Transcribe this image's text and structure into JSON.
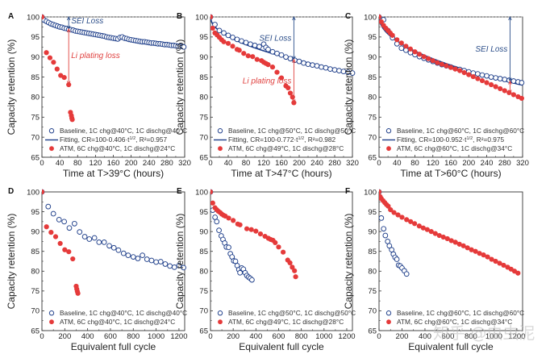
{
  "figure": {
    "watermark": "知乎 @虫虫泥",
    "colors": {
      "baseline": "#1f3f8a",
      "atm": "#e53a3a",
      "fitting": "#1f3f8a",
      "sei_annotation": "#2d4f8a",
      "li_annotation": "#e0413f",
      "reference_line": "#888888"
    }
  },
  "chart_data": [
    {
      "id": "A",
      "type": "scatter",
      "panel_label": "A",
      "xlabel": "Time at T>39°C (hours)",
      "ylabel": "Capacity retention (%)",
      "xlim": [
        0,
        320
      ],
      "ylim": [
        65,
        100
      ],
      "xticks": [
        0,
        40,
        80,
        120,
        160,
        200,
        240,
        280,
        320
      ],
      "yticks": [
        65,
        70,
        75,
        80,
        85,
        90,
        95,
        100
      ],
      "reference_line_y": 100,
      "legend": [
        "Baseline, 1C chg@40°C, 1C dischg@40°C",
        "Fitting, CR=100-0.406·t^1/2, R²=0.957",
        "ATM, 6C chg@40°C, 1C dischg@24°C"
      ],
      "legend_position": "bottom-left",
      "fit": {
        "a": 0.406,
        "r2": 0.957
      },
      "annotations": [
        {
          "text": "SEI Loss",
          "x": 60,
          "y_from": 100,
          "y_to": 97.0,
          "color": "sei"
        },
        {
          "text": "Li plating loss",
          "x": 60,
          "y_from": 97.0,
          "y_to": 83.2,
          "color": "li"
        }
      ],
      "series": [
        {
          "name": "Baseline",
          "marker": "open-circle",
          "x": [
            0,
            5,
            10,
            15,
            20,
            25,
            30,
            35,
            40,
            45,
            50,
            55,
            60,
            65,
            70,
            75,
            80,
            85,
            90,
            95,
            100,
            105,
            110,
            115,
            120,
            125,
            130,
            135,
            140,
            145,
            150,
            155,
            160,
            165,
            170,
            175,
            180,
            185,
            190,
            195,
            200,
            205,
            210,
            215,
            220,
            225,
            230,
            235,
            240,
            245,
            250,
            255,
            260,
            265,
            270,
            275,
            280,
            285,
            290,
            295,
            300,
            305,
            310,
            315,
            318
          ],
          "y": [
            100,
            99.2,
            98.9,
            98.6,
            98.3,
            98.1,
            97.9,
            97.7,
            97.5,
            97.4,
            97.2,
            97.1,
            96.9,
            96.8,
            96.7,
            96.5,
            96.4,
            96.3,
            96.2,
            96.1,
            96.0,
            95.9,
            95.8,
            95.7,
            95.6,
            95.5,
            95.4,
            95.3,
            95.2,
            95.0,
            94.9,
            94.8,
            94.7,
            94.6,
            94.5,
            94.9,
            95.0,
            94.7,
            94.6,
            94.4,
            94.3,
            94.2,
            94.1,
            94.0,
            93.9,
            93.8,
            93.8,
            93.7,
            93.6,
            93.5,
            93.5,
            93.4,
            93.3,
            93.3,
            93.2,
            93.1,
            93.1,
            93.0,
            92.9,
            92.9,
            92.8,
            92.7,
            92.7,
            92.6,
            92.5
          ]
        },
        {
          "name": "ATM",
          "marker": "filled-circle",
          "x": [
            0,
            10,
            18,
            26,
            34,
            42,
            50,
            60,
            64,
            66,
            67,
            68
          ],
          "y": [
            100,
            91.1,
            89.8,
            88.7,
            87.0,
            85.4,
            84.9,
            83.1,
            76.2,
            75.4,
            74.8,
            74.4
          ]
        }
      ]
    },
    {
      "id": "B",
      "type": "scatter",
      "panel_label": "B",
      "xlabel": "Time at T>47°C (hours)",
      "ylabel": "Capacity retention (%)",
      "xlim": [
        0,
        320
      ],
      "ylim": [
        65,
        100
      ],
      "xticks": [
        0,
        40,
        80,
        120,
        160,
        200,
        240,
        280,
        320
      ],
      "yticks": [
        65,
        70,
        75,
        80,
        85,
        90,
        95,
        100
      ],
      "reference_line_y": 100,
      "legend": [
        "Baseline, 1C chg@50°C, 1C dischg@50°C",
        "Fitting, CR=100-0.772·t^1/2, R²=0.982",
        "ATM, 6C chg@49°C, 1C dischg@28°C"
      ],
      "legend_position": "bottom-left",
      "fit": {
        "a": 0.772,
        "r2": 0.982
      },
      "annotations": [
        {
          "text": "SEI Loss",
          "x": 188,
          "y_from": 100,
          "y_to": 89.4,
          "color": "sei"
        },
        {
          "text": "Li plating loss",
          "x": 188,
          "y_from": 89.4,
          "y_to": 78.6,
          "color": "li"
        }
      ],
      "series": [
        {
          "name": "Baseline",
          "marker": "open-circle",
          "x": [
            0,
            10,
            20,
            30,
            40,
            50,
            60,
            70,
            80,
            90,
            100,
            110,
            120,
            125,
            130,
            140,
            150,
            160,
            170,
            180,
            190,
            200,
            210,
            220,
            230,
            240,
            250,
            260,
            270,
            280,
            290,
            300,
            310,
            320
          ],
          "y": [
            100,
            98.1,
            96.6,
            96.0,
            95.4,
            94.9,
            94.4,
            94.0,
            93.6,
            93.2,
            92.9,
            92.6,
            93.2,
            92.4,
            91.9,
            91.3,
            90.9,
            90.5,
            90.0,
            89.6,
            89.2,
            88.9,
            88.5,
            88.2,
            88.0,
            87.8,
            87.5,
            87.3,
            87.0,
            86.8,
            86.6,
            86.4,
            86.2,
            86.0
          ]
        },
        {
          "name": "ATM",
          "marker": "filled-circle",
          "x": [
            0,
            5,
            10,
            15,
            20,
            25,
            30,
            40,
            50,
            60,
            65,
            75,
            85,
            95,
            105,
            115,
            120,
            125,
            130,
            140,
            150,
            160,
            170,
            175,
            180,
            185,
            188
          ],
          "y": [
            100,
            97.2,
            96.0,
            95.5,
            94.9,
            94.3,
            93.8,
            93.4,
            92.7,
            91.9,
            91.7,
            90.9,
            90.3,
            90.1,
            89.4,
            89.1,
            88.7,
            88.4,
            88.1,
            87.5,
            86.2,
            84.8,
            82.8,
            82.3,
            81.0,
            80.0,
            78.6
          ]
        }
      ]
    },
    {
      "id": "C",
      "type": "scatter",
      "panel_label": "C",
      "xlabel": "Time at T>60°C (hours)",
      "ylabel": "Capacity retention (%)",
      "xlim": [
        0,
        320
      ],
      "ylim": [
        65,
        100
      ],
      "xticks": [
        0,
        40,
        80,
        120,
        160,
        200,
        240,
        280,
        320
      ],
      "yticks": [
        65,
        70,
        75,
        80,
        85,
        90,
        95,
        100
      ],
      "reference_line_y": 100,
      "legend": [
        "Baseline, 1C chg@60°C, 1C dischg@60°C",
        "Fitting, CR=100-0.952·t^1/2, R²=0.975",
        "ATM, 6C chg@60°C, 1C dischg@34°C"
      ],
      "legend_position": "bottom-left",
      "fit": {
        "a": 0.952,
        "r2": 0.975
      },
      "annotations": [
        {
          "text": "SEI Loss",
          "x": 292,
          "y_from": 100,
          "y_to": 84.0,
          "color": "sei"
        },
        {
          "text": "",
          "x": 292,
          "y_from": 84.0,
          "y_to": 81.0,
          "color": "li"
        }
      ],
      "series": [
        {
          "name": "Baseline",
          "marker": "open-circle",
          "x": [
            0,
            10,
            20,
            30,
            40,
            50,
            60,
            70,
            80,
            90,
            100,
            110,
            120,
            130,
            140,
            150,
            160,
            170,
            180,
            190,
            200,
            210,
            220,
            230,
            240,
            250,
            260,
            270,
            280,
            290,
            300,
            310,
            318
          ],
          "y": [
            100,
            99.3,
            96.6,
            94.8,
            93.3,
            92.2,
            91.7,
            91.1,
            90.6,
            90.1,
            89.7,
            89.3,
            88.9,
            88.5,
            88.1,
            87.8,
            87.5,
            87.1,
            86.9,
            86.6,
            86.3,
            86.0,
            85.8,
            85.5,
            85.3,
            85.0,
            84.8,
            84.6,
            84.4,
            84.2,
            84.0,
            83.8,
            83.6
          ]
        },
        {
          "name": "ATM",
          "marker": "filled-circle",
          "x": [
            0,
            5,
            10,
            15,
            20,
            25,
            30,
            40,
            50,
            60,
            70,
            80,
            90,
            100,
            110,
            120,
            130,
            140,
            150,
            160,
            170,
            180,
            190,
            200,
            210,
            220,
            230,
            240,
            250,
            260,
            270,
            280,
            290,
            300,
            310,
            318
          ],
          "y": [
            100,
            98.8,
            97.9,
            97.2,
            96.6,
            96.0,
            95.4,
            94.3,
            93.5,
            92.7,
            92.0,
            91.3,
            90.7,
            90.1,
            89.6,
            89.1,
            88.6,
            88.2,
            87.8,
            87.4,
            87.0,
            86.6,
            86.1,
            85.6,
            85.1,
            84.6,
            84.1,
            83.6,
            83.1,
            82.6,
            82.1,
            81.6,
            81.1,
            80.6,
            80.1,
            79.7
          ]
        }
      ]
    },
    {
      "id": "D",
      "type": "scatter",
      "panel_label": "D",
      "xlabel": "Equivalent full cycle",
      "ylabel": "Capacity retention (%)",
      "xlim": [
        0,
        1250
      ],
      "ylim": [
        65,
        100
      ],
      "xticks": [
        0,
        200,
        400,
        600,
        800,
        1000,
        1200
      ],
      "yticks": [
        65,
        70,
        75,
        80,
        85,
        90,
        95,
        100
      ],
      "legend": [
        "Baseline, 1C chg@40°C, 1C dischg@40°C",
        "ATM, 6C chg@40°C, 1C dischg@24°C"
      ],
      "legend_position": "bottom-left",
      "series": [
        {
          "name": "Baseline",
          "marker": "open-circle",
          "x": [
            0,
            55,
            100,
            150,
            195,
            240,
            285,
            330,
            375,
            415,
            460,
            500,
            545,
            590,
            630,
            670,
            715,
            755,
            800,
            840,
            880,
            920,
            960,
            1000,
            1040,
            1080,
            1120,
            1160,
            1200,
            1240
          ],
          "y": [
            100,
            96.3,
            94.5,
            93.0,
            92.5,
            90.9,
            92.0,
            89.9,
            88.7,
            88.1,
            88.4,
            87.3,
            87.3,
            86.4,
            85.9,
            85.3,
            84.5,
            84.0,
            83.6,
            83.2,
            84.0,
            83.0,
            82.7,
            82.3,
            82.4,
            81.8,
            81.3,
            81.0,
            81.4,
            80.9
          ]
        },
        {
          "name": "ATM",
          "marker": "filled-circle",
          "x": [
            0,
            40,
            80,
            120,
            160,
            200,
            235,
            270,
            300,
            305,
            310,
            315
          ],
          "y": [
            100,
            91.2,
            89.8,
            88.7,
            87.0,
            85.4,
            84.9,
            83.1,
            76.2,
            75.5,
            74.9,
            74.4
          ]
        }
      ]
    },
    {
      "id": "E",
      "type": "scatter",
      "panel_label": "E",
      "xlabel": "Equivalent full cycle",
      "ylabel": "Capacity retention (%)",
      "xlim": [
        0,
        1250
      ],
      "ylim": [
        65,
        100
      ],
      "xticks": [
        0,
        200,
        400,
        600,
        800,
        1000,
        1200
      ],
      "yticks": [
        65,
        70,
        75,
        80,
        85,
        90,
        95,
        100
      ],
      "legend": [
        "Baseline, 1C chg@50°C, 1C dischg@50°C",
        "ATM, 6C chg@49°C, 1C dischg@28°C"
      ],
      "legend_position": "bottom-left",
      "series": [
        {
          "name": "Baseline",
          "marker": "open-circle",
          "x": [
            0,
            20,
            40,
            55,
            75,
            95,
            110,
            125,
            140,
            160,
            175,
            190,
            205,
            220,
            235,
            250,
            260,
            275,
            290,
            305,
            320,
            335,
            350,
            365
          ],
          "y": [
            100,
            95.4,
            93.6,
            92.5,
            90.3,
            88.9,
            88.0,
            87.1,
            86.1,
            86.0,
            84.4,
            83.6,
            82.6,
            82.5,
            81.4,
            80.4,
            79.6,
            80.8,
            80.5,
            79.6,
            78.9,
            78.5,
            78.2,
            77.8
          ]
        },
        {
          "name": "ATM",
          "marker": "filled-circle",
          "x": [
            0,
            20,
            40,
            55,
            70,
            85,
            100,
            115,
            130,
            160,
            200,
            240,
            260,
            320,
            360,
            400,
            440,
            480,
            510,
            530,
            550,
            570,
            600,
            640,
            680,
            700,
            720,
            740,
            750
          ],
          "y": [
            100,
            97.2,
            96.0,
            95.5,
            95.1,
            94.8,
            94.4,
            94.1,
            93.9,
            93.4,
            92.8,
            91.9,
            91.7,
            90.7,
            90.5,
            90.1,
            89.4,
            88.8,
            88.3,
            88.0,
            87.8,
            87.2,
            86.1,
            84.8,
            82.8,
            82.1,
            81.0,
            80.1,
            78.6
          ]
        }
      ]
    },
    {
      "id": "F",
      "type": "scatter",
      "panel_label": "F",
      "xlabel": "Equivalent full cycle",
      "ylabel": "Capacity retention (%)",
      "xlim": [
        0,
        1250
      ],
      "ylim": [
        65,
        100
      ],
      "xticks": [
        0,
        200,
        400,
        600,
        800,
        1000,
        1200
      ],
      "yticks": [
        65,
        70,
        75,
        80,
        85,
        90,
        95,
        100
      ],
      "legend": [
        "Baseline, 1C chg@60°C, 1C dischg@60°C",
        "ATM, 6C chg@60°C, 1C dischg@34°C"
      ],
      "legend_position": "bottom-left",
      "series": [
        {
          "name": "Baseline",
          "marker": "open-circle",
          "x": [
            0,
            20,
            40,
            55,
            75,
            90,
            110,
            125,
            140,
            155,
            170,
            185,
            200,
            220,
            240
          ],
          "y": [
            100,
            93.4,
            90.7,
            89.0,
            87.5,
            86.4,
            85.4,
            84.3,
            83.5,
            83.0,
            81.5,
            81.3,
            80.8,
            80.1,
            79.3
          ]
        },
        {
          "name": "ATM",
          "marker": "filled-circle",
          "x": [
            0,
            10,
            20,
            35,
            50,
            65,
            80,
            100,
            130,
            165,
            200,
            240,
            275,
            310,
            350,
            385,
            420,
            455,
            490,
            525,
            560,
            595,
            630,
            665,
            700,
            735,
            770,
            805,
            840,
            875,
            910,
            945,
            980,
            1015,
            1050,
            1085,
            1120,
            1150,
            1180,
            1210
          ],
          "y": [
            100,
            98.8,
            98.3,
            97.8,
            97.3,
            96.8,
            96.4,
            95.5,
            94.8,
            94.2,
            93.6,
            93.0,
            92.5,
            92.0,
            91.4,
            90.9,
            90.5,
            90.0,
            89.5,
            89.0,
            88.6,
            88.2,
            87.7,
            87.3,
            86.8,
            86.4,
            85.9,
            85.4,
            85.0,
            84.5,
            84.1,
            83.6,
            83.0,
            82.5,
            82.0,
            81.5,
            81.0,
            80.5,
            80.0,
            79.5
          ]
        }
      ]
    }
  ]
}
